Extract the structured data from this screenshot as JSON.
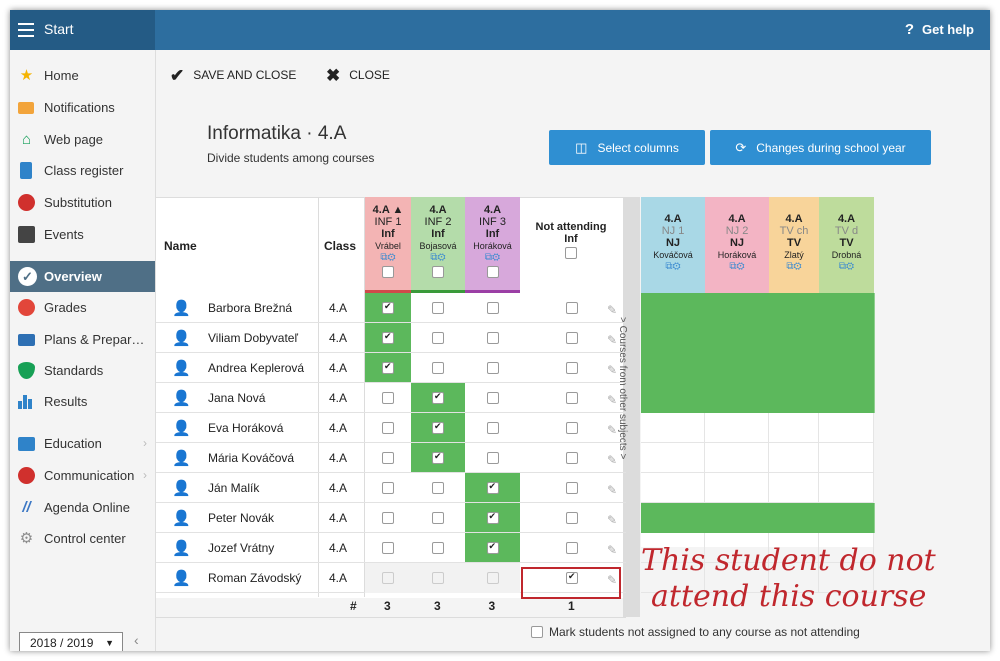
{
  "topbar": {
    "start_label": "Start",
    "help_label": "Get help",
    "help_icon": "?"
  },
  "sidebar": {
    "items": [
      {
        "label": "Home"
      },
      {
        "label": "Notifications"
      },
      {
        "label": "Web page"
      },
      {
        "label": "Class register"
      },
      {
        "label": "Substitution"
      },
      {
        "label": "Events"
      },
      {
        "label": "Overview"
      },
      {
        "label": "Grades"
      },
      {
        "label": "Plans & Prepar…"
      },
      {
        "label": "Standards"
      },
      {
        "label": "Results"
      },
      {
        "label": "Education"
      },
      {
        "label": "Communication"
      },
      {
        "label": "Agenda Online"
      },
      {
        "label": "Control center"
      }
    ],
    "year": "2018 / 2019"
  },
  "toolbar": {
    "save_label": "SAVE AND CLOSE",
    "close_label": "CLOSE"
  },
  "page": {
    "title": "Informatika · 4.A",
    "subtitle": "Divide students among courses",
    "select_columns_label": "Select columns",
    "changes_label": "Changes during school year"
  },
  "table": {
    "name_header": "Name",
    "class_header": "Class",
    "courses": [
      {
        "l1": "4.A ▲",
        "l2": "INF 1",
        "l3": "Inf",
        "l4": "Vrábel",
        "color": "#f3b4b4"
      },
      {
        "l1": "4.A",
        "l2": "INF 2",
        "l3": "Inf",
        "l4": "Bojasová",
        "color": "#b4dcaa"
      },
      {
        "l1": "4.A",
        "l2": "INF 3",
        "l3": "Inf",
        "l4": "Horáková",
        "color": "#d7a8db"
      }
    ],
    "not_attending_header": "Not attending",
    "not_attending_sub": "Inf",
    "side_strip_label": "> Courses from other subjects >",
    "other_courses": [
      {
        "l1": "4.A",
        "l2": "NJ 1",
        "l3": "NJ",
        "l4": "Kováčová",
        "color": "#a9d8e6"
      },
      {
        "l1": "4.A",
        "l2": "NJ 2",
        "l3": "NJ",
        "l4": "Horáková",
        "color": "#f3b4c4"
      },
      {
        "l1": "4.A",
        "l2": "TV ch",
        "l3": "TV",
        "l4": "Zlatý",
        "color": "#f8d49a"
      },
      {
        "l1": "4.A",
        "l2": "TV d",
        "l3": "TV",
        "l4": "Drobná",
        "color": "#bedc9c"
      }
    ],
    "students": [
      {
        "name": "Barbora Brežná",
        "class": "4.A",
        "course": 1,
        "not_attending": false,
        "other": [
          true,
          true,
          true,
          true
        ]
      },
      {
        "name": "Viliam Dobyvateľ",
        "class": "4.A",
        "course": 1,
        "not_attending": false,
        "other": [
          true,
          true,
          true,
          true
        ]
      },
      {
        "name": "Andrea Keplerová",
        "class": "4.A",
        "course": 1,
        "not_attending": false,
        "other": [
          true,
          true,
          true,
          true
        ]
      },
      {
        "name": "Jana Nová",
        "class": "4.A",
        "course": 2,
        "not_attending": false,
        "other": [
          true,
          true,
          true,
          true
        ]
      },
      {
        "name": "Eva Horáková",
        "class": "4.A",
        "course": 2,
        "not_attending": false,
        "other": [
          false,
          false,
          false,
          false
        ]
      },
      {
        "name": "Mária Kováčová",
        "class": "4.A",
        "course": 2,
        "not_attending": false,
        "other": [
          false,
          false,
          false,
          false
        ]
      },
      {
        "name": "Ján Malík",
        "class": "4.A",
        "course": 3,
        "not_attending": false,
        "other": [
          false,
          false,
          false,
          false
        ]
      },
      {
        "name": "Peter Novák",
        "class": "4.A",
        "course": 3,
        "not_attending": false,
        "other": [
          true,
          true,
          true,
          true
        ]
      },
      {
        "name": "Jozef Vrátny",
        "class": "4.A",
        "course": 3,
        "not_attending": false,
        "other": [
          false,
          false,
          false,
          false
        ]
      },
      {
        "name": "Roman Závodský",
        "class": "4.A",
        "course": 0,
        "not_attending": true,
        "other": [
          false,
          false,
          false,
          false
        ]
      }
    ],
    "totals_label": "#",
    "totals": [
      "3",
      "3",
      "3"
    ],
    "not_attending_total": "1",
    "footer_checkbox_label": "Mark students not assigned to any course as not attending"
  },
  "annotation": {
    "line1": "This student do not",
    "line2": "attend this course"
  },
  "colors": {
    "topbar": "#2d6e9f",
    "accent_blue": "#2f8fd2",
    "assigned_green": "#5cb85c",
    "annotation_red": "#c0272d"
  }
}
